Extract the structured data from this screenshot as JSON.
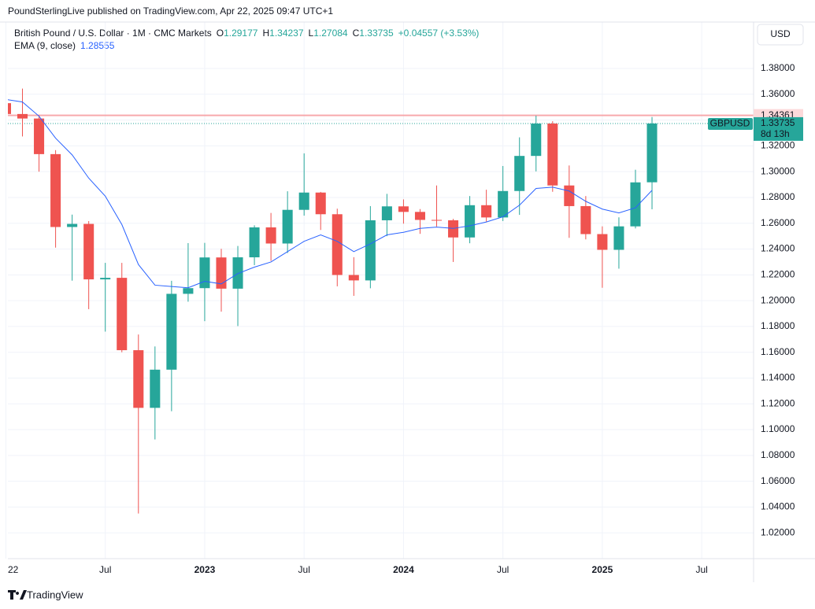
{
  "header": {
    "publisher": "PoundSterlingLive published on TradingView.com, Apr 22, 2025 09:47 UTC+1"
  },
  "legend": {
    "instrument": "British Pound / U.S. Dollar · 1M · CMC Markets",
    "ohlc": [
      {
        "key": "O",
        "value": "1.29177"
      },
      {
        "key": "H",
        "value": "1.34237"
      },
      {
        "key": "L",
        "value": "1.27084"
      },
      {
        "key": "C",
        "value": "1.33735"
      }
    ],
    "change": "+0.04557 (+3.53%)",
    "indicator": "EMA (9, close)",
    "indicator_value": "1.28555"
  },
  "currency_button": "USD",
  "footer": "TradingView",
  "chart_data": {
    "type": "candlestick",
    "x": [
      0,
      1,
      2,
      3,
      4,
      5,
      6,
      7,
      8,
      9,
      10,
      11,
      12,
      13,
      14,
      15,
      16,
      17,
      18,
      19,
      20,
      21,
      22,
      23,
      24,
      25,
      26,
      27,
      28,
      29,
      30,
      31,
      32,
      33,
      34,
      35,
      36,
      37,
      38,
      39
    ],
    "xlim": [
      0.12,
      45.13
    ],
    "xticks": [
      {
        "value": 0,
        "label": "22"
      },
      {
        "value": 6,
        "label": "Jul"
      },
      {
        "value": 12,
        "label": "2023"
      },
      {
        "value": 18,
        "label": "Jul"
      },
      {
        "value": 24,
        "label": "2024"
      },
      {
        "value": 30,
        "label": "Jul"
      },
      {
        "value": 36,
        "label": "2025"
      },
      {
        "value": 42,
        "label": "Jul"
      }
    ],
    "ylim": [
      1.0,
      1.416
    ],
    "yticks": [
      {
        "value": 1.02,
        "label": "1.02000"
      },
      {
        "value": 1.04,
        "label": "1.04000"
      },
      {
        "value": 1.06,
        "label": "1.06000"
      },
      {
        "value": 1.08,
        "label": "1.08000"
      },
      {
        "value": 1.1,
        "label": "1.10000"
      },
      {
        "value": 1.12,
        "label": "1.12000"
      },
      {
        "value": 1.14,
        "label": "1.14000"
      },
      {
        "value": 1.16,
        "label": "1.16000"
      },
      {
        "value": 1.18,
        "label": "1.18000"
      },
      {
        "value": 1.2,
        "label": "1.20000"
      },
      {
        "value": 1.22,
        "label": "1.22000"
      },
      {
        "value": 1.24,
        "label": "1.24000"
      },
      {
        "value": 1.26,
        "label": "1.26000"
      },
      {
        "value": 1.28,
        "label": "1.28000"
      },
      {
        "value": 1.3,
        "label": "1.30000"
      },
      {
        "value": 1.32,
        "label": "1.32000"
      },
      {
        "value": 1.34,
        "label": "1.34000"
      },
      {
        "value": 1.36,
        "label": "1.36000"
      },
      {
        "value": 1.38,
        "label": "1.38000"
      }
    ],
    "grid": true,
    "up_color": "#26a69a",
    "down_color": "#ef5350",
    "open": [
      1.3531,
      1.3447,
      1.3412,
      1.3136,
      1.2571,
      1.2595,
      1.2165,
      1.2177,
      1.1616,
      1.1169,
      1.1465,
      1.2053,
      1.2097,
      1.2335,
      1.2093,
      1.2336,
      1.2568,
      1.2443,
      1.2704,
      1.2838,
      1.267,
      1.2199,
      1.2157,
      1.2623,
      1.2731,
      1.2688,
      1.2626,
      1.2623,
      1.249,
      1.274,
      1.2645,
      1.285,
      1.3122,
      1.3373,
      1.2893,
      1.2733,
      1.2516,
      1.2394,
      1.2576,
      1.29177
    ],
    "high": [
      1.3749,
      1.3644,
      1.3438,
      1.3167,
      1.2667,
      1.2617,
      1.2293,
      1.2293,
      1.1738,
      1.1645,
      1.2154,
      1.2446,
      1.2448,
      1.2402,
      1.2424,
      1.2584,
      1.268,
      1.2848,
      1.3142,
      1.2843,
      1.2713,
      1.2337,
      1.2733,
      1.2828,
      1.2785,
      1.271,
      1.2893,
      1.2634,
      1.2811,
      1.286,
      1.3044,
      1.3266,
      1.3434,
      1.3391,
      1.3048,
      1.2811,
      1.2576,
      1.2646,
      1.3015,
      1.34237
    ],
    "low": [
      1.3359,
      1.3273,
      1.3,
      1.2411,
      1.2155,
      1.1934,
      1.176,
      1.16,
      1.035,
      1.0924,
      1.1143,
      1.1992,
      1.1841,
      1.1915,
      1.1803,
      1.2275,
      1.2308,
      1.2369,
      1.2659,
      1.2548,
      1.2111,
      1.2037,
      1.2096,
      1.25,
      1.2597,
      1.2518,
      1.2575,
      1.23,
      1.2445,
      1.2613,
      1.2617,
      1.2665,
      1.3002,
      1.2844,
      1.2487,
      1.2475,
      1.21,
      1.2248,
      1.256,
      1.27084
    ],
    "close": [
      1.3447,
      1.3412,
      1.3136,
      1.2571,
      1.2595,
      1.2165,
      1.2177,
      1.1616,
      1.1169,
      1.1465,
      1.2053,
      1.2097,
      1.2335,
      1.2093,
      1.2336,
      1.2568,
      1.2443,
      1.2704,
      1.2838,
      1.267,
      1.2199,
      1.2157,
      1.2623,
      1.2731,
      1.2688,
      1.2626,
      1.2623,
      1.249,
      1.274,
      1.2645,
      1.285,
      1.3122,
      1.3373,
      1.2893,
      1.2733,
      1.2516,
      1.2394,
      1.2576,
      1.2917,
      1.33735
    ],
    "series": [
      {
        "name": "EMA (9, close)",
        "color": "#2962ff",
        "values": [
          1.356,
          1.354,
          1.343,
          1.326,
          1.313,
          1.295,
          1.281,
          1.259,
          1.228,
          1.212,
          1.211,
          1.21,
          1.215,
          1.213,
          1.221,
          1.226,
          1.23,
          1.238,
          1.246,
          1.251,
          1.246,
          1.238,
          1.244,
          1.251,
          1.253,
          1.256,
          1.257,
          1.256,
          1.258,
          1.261,
          1.265,
          1.274,
          1.287,
          1.288,
          1.285,
          1.277,
          1.271,
          1.268,
          1.272,
          1.28555
        ]
      }
    ],
    "high_line": {
      "value": 1.34361,
      "color": "#f7a9ac"
    },
    "last_price": {
      "value": 1.33735,
      "symbol": "GBPUSD",
      "countdown": "8d 13h"
    }
  }
}
